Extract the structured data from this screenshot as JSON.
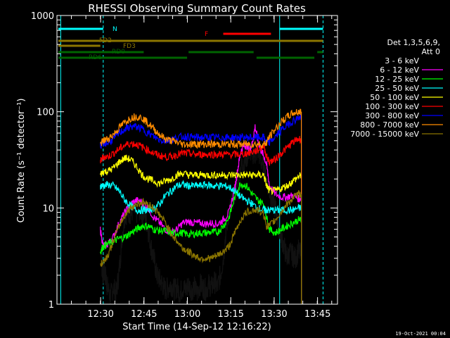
{
  "chart_data": {
    "type": "line",
    "title": "RHESSI Observing Summary Count Rates",
    "xlabel": "Start Time (14-Sep-12 12:16:22)",
    "ylabel": "Count Rate (s⁻¹ detector⁻¹)",
    "yscale": "log",
    "ylim": [
      1,
      1000
    ],
    "xlim_minutes": [
      0,
      96
    ],
    "x_ticks": [
      "12:30",
      "12:45",
      "13:00",
      "13:15",
      "13:30",
      "13:45"
    ],
    "x_tick_minutes": [
      13.6,
      28.6,
      43.6,
      58.6,
      73.6,
      88.6
    ],
    "y_ticks": [
      "1",
      "10",
      "100",
      "1000"
    ],
    "y_tick_values": [
      1,
      10,
      100,
      1000
    ],
    "legend_header": [
      "Det 1,3,5,6,9,",
      "Att 0"
    ],
    "legend_placement": "right",
    "series": [
      {
        "name": "3 - 6 keV",
        "color": "#000000",
        "x": [
          13.5,
          14,
          14.5,
          15,
          15.5,
          16,
          17,
          18,
          19,
          20,
          21,
          22,
          23,
          24,
          25,
          26,
          27,
          28,
          29,
          30,
          31,
          32,
          33,
          34,
          35,
          36,
          37,
          38,
          39,
          40,
          41,
          42,
          43,
          44,
          45,
          46,
          47,
          48,
          49,
          50,
          51,
          52,
          53,
          54,
          55,
          56,
          57,
          58,
          59,
          60,
          61,
          62,
          63,
          64,
          65,
          66,
          67,
          68,
          69,
          70,
          71,
          72,
          73,
          74,
          75,
          76,
          77,
          78,
          79,
          80,
          81,
          82,
          83
        ],
        "y": [
          6,
          2.5,
          2,
          2.2,
          1.8,
          1.5,
          1.2,
          1.5,
          1.3,
          2.2,
          5,
          8.5,
          9,
          8.8,
          9.5,
          8.8,
          9.5,
          9,
          8.5,
          6,
          4,
          3,
          2,
          1.8,
          1.6,
          1.4,
          1.5,
          1.6,
          1.4,
          1.5,
          1.3,
          1.5,
          1.4,
          1.6,
          1.4,
          1.5,
          1.3,
          1.6,
          1.5,
          1.4,
          1.6,
          1.5,
          1.7,
          1.5,
          2,
          3,
          6,
          9,
          12,
          14,
          17,
          26,
          30,
          33,
          40,
          38,
          36,
          40,
          32,
          26,
          20,
          15,
          12,
          10,
          7,
          5,
          4,
          3,
          3.5,
          3.2,
          3,
          3.6,
          3.2
        ]
      },
      {
        "name": "6 - 12 keV",
        "color": "#ff00ff",
        "x": [
          13.5,
          14.5,
          16,
          18,
          20,
          22,
          24,
          26,
          28,
          30,
          32,
          34,
          36,
          38,
          40,
          42,
          44,
          46,
          48,
          50,
          52,
          54,
          56,
          58,
          60,
          61,
          62,
          63,
          64,
          65,
          66,
          67,
          68,
          69,
          70,
          71,
          72,
          74,
          76,
          78,
          80,
          82,
          83
        ],
        "y": [
          6,
          4,
          4.2,
          5,
          7,
          9,
          11,
          12,
          11.5,
          10,
          8,
          7,
          6,
          5.5,
          6,
          7,
          7.2,
          7,
          7,
          6.8,
          7,
          6.8,
          7.5,
          9,
          16,
          25,
          38,
          44,
          45,
          40,
          46,
          70,
          50,
          40,
          35,
          28,
          17,
          14,
          13,
          13,
          13.5,
          12.5,
          12.5
        ]
      },
      {
        "name": "12 - 25 keV",
        "color": "#00ff00",
        "x": [
          13.5,
          14.5,
          16,
          18,
          20,
          22,
          24,
          26,
          28,
          30,
          32,
          34,
          36,
          38,
          40,
          42,
          44,
          46,
          48,
          50,
          52,
          54,
          56,
          58,
          60,
          62,
          64,
          66,
          68,
          70,
          71,
          72,
          74,
          76,
          78,
          80,
          82,
          83
        ],
        "y": [
          3.5,
          4,
          4.2,
          4.5,
          4.8,
          5,
          5.5,
          6,
          6.5,
          6.5,
          6,
          5.8,
          5.8,
          5.5,
          5.5,
          5.5,
          5.3,
          5.4,
          5.5,
          5.5,
          5.6,
          5.6,
          6.5,
          8,
          13,
          18,
          17,
          14,
          12,
          11,
          8,
          6,
          5.5,
          6,
          6.5,
          7,
          7.5,
          7.5
        ]
      },
      {
        "name": "25 - 50 keV",
        "color": "#00ffff",
        "x": [
          13.5,
          14.5,
          16,
          18,
          20,
          22,
          24,
          26,
          28,
          30,
          32,
          34,
          36,
          38,
          40,
          42,
          44,
          46,
          48,
          50,
          52,
          54,
          56,
          58,
          60,
          62,
          64,
          66,
          68,
          70,
          71,
          72,
          74,
          76,
          78,
          80,
          82,
          83
        ],
        "y": [
          17,
          17,
          17.5,
          17,
          15,
          12,
          10.5,
          9.5,
          9.5,
          9.5,
          10,
          11,
          13.5,
          15,
          17,
          17.5,
          17,
          17,
          17,
          17.5,
          17,
          17,
          17,
          16.5,
          15,
          13,
          12,
          11,
          10,
          9.5,
          9.5,
          9.5,
          9.5,
          9.5,
          9.5,
          9.5,
          10,
          10
        ]
      },
      {
        "name": "50 - 100 keV",
        "color": "#ffff00",
        "x": [
          13.5,
          14.5,
          16,
          18,
          20,
          22,
          24,
          26,
          28,
          30,
          32,
          34,
          36,
          38,
          40,
          42,
          44,
          46,
          48,
          50,
          52,
          54,
          56,
          58,
          60,
          62,
          64,
          66,
          68,
          70,
          71,
          72,
          74,
          76,
          78,
          80,
          82,
          83
        ],
        "y": [
          22,
          24,
          24,
          26,
          30,
          33,
          32,
          27,
          22,
          20,
          19,
          18,
          19,
          20,
          22,
          23,
          22,
          22,
          22,
          22,
          22,
          22,
          22,
          22,
          22,
          22,
          22,
          22,
          22,
          22,
          17,
          15,
          15,
          16,
          17,
          19,
          21,
          22
        ]
      },
      {
        "name": "100 - 300 keV",
        "color": "#ff0000",
        "x": [
          13.5,
          14.5,
          16,
          18,
          20,
          22,
          24,
          26,
          28,
          30,
          32,
          34,
          36,
          38,
          40,
          42,
          44,
          46,
          48,
          50,
          52,
          54,
          56,
          58,
          60,
          62,
          64,
          66,
          68,
          70,
          71,
          72,
          74,
          76,
          78,
          80,
          82,
          83
        ],
        "y": [
          30,
          34,
          34,
          37,
          41,
          45,
          47,
          46,
          43,
          40,
          37,
          35,
          34,
          34,
          36,
          37,
          37,
          36,
          36,
          36,
          36,
          36,
          36,
          36,
          36,
          36,
          37,
          38,
          40,
          44,
          34,
          30,
          32,
          37,
          42,
          48,
          52,
          52
        ]
      },
      {
        "name": "300 - 800 keV",
        "color": "#0000ff",
        "x": [
          13.5,
          14.5,
          16,
          18,
          20,
          22,
          24,
          26,
          28,
          30,
          32,
          34,
          36,
          38,
          40,
          42,
          44,
          46,
          48,
          50,
          52,
          54,
          56,
          58,
          60,
          62,
          64,
          66,
          68,
          70,
          71,
          72,
          74,
          76,
          78,
          80,
          82,
          83
        ],
        "y": [
          44,
          47,
          47,
          52,
          60,
          66,
          70,
          70,
          66,
          60,
          55,
          51,
          50,
          51,
          54,
          55,
          55,
          54,
          54,
          54,
          54,
          54,
          54,
          54,
          54,
          54,
          54,
          54,
          54,
          54,
          48,
          48,
          55,
          64,
          72,
          80,
          86,
          88
        ]
      },
      {
        "name": "800 - 7000 keV",
        "color": "#ff8c00",
        "x": [
          13.5,
          14.5,
          16,
          18,
          20,
          22,
          24,
          26,
          28,
          30,
          32,
          34,
          36,
          38,
          40,
          42,
          44,
          46,
          48,
          50,
          52,
          54,
          56,
          58,
          60,
          62,
          64,
          66,
          68,
          70,
          71,
          72,
          74,
          76,
          78,
          80,
          82,
          83
        ],
        "y": [
          46,
          50,
          52,
          58,
          68,
          78,
          86,
          90,
          86,
          76,
          66,
          58,
          52,
          50,
          48,
          46,
          46,
          46,
          46,
          46,
          46,
          46,
          46,
          46,
          46,
          46,
          46,
          46,
          46,
          46,
          48,
          55,
          66,
          78,
          88,
          96,
          100,
          100
        ]
      },
      {
        "name": "7000 - 15000 keV",
        "color": "#8b7500",
        "x": [
          13.5,
          14.5,
          16,
          18,
          20,
          22,
          24,
          26,
          28,
          30,
          32,
          34,
          36,
          38,
          40,
          42,
          44,
          46,
          48,
          50,
          52,
          54,
          56,
          58,
          60,
          62,
          64,
          66,
          68,
          70,
          71,
          72,
          74,
          76,
          78,
          80,
          82,
          83
        ],
        "y": [
          2.5,
          2.8,
          3.2,
          4.5,
          6.5,
          8.5,
          10,
          11,
          11.5,
          11,
          10,
          8.5,
          7,
          5.5,
          4.5,
          3.8,
          3.5,
          3.2,
          3,
          3,
          3,
          3.2,
          3.5,
          4,
          5.5,
          7.5,
          9,
          9.5,
          9.5,
          8.5,
          6.5,
          6.5,
          7.5,
          9,
          11,
          12.5,
          14,
          14
        ]
      }
    ],
    "segments": [
      {
        "label": "N",
        "color": "#00ffff",
        "ranges": [
          [
            -1,
            14.5
          ],
          [
            75.5,
            90.5
          ]
        ]
      },
      {
        "label": "F",
        "color": "#ff0000",
        "ranges": [
          [
            56,
            72.5
          ]
        ]
      },
      {
        "label": "FD2",
        "color": "#8b7500",
        "ranges": [
          [
            -1,
            13.5
          ],
          [
            13.6,
            90.5
          ]
        ]
      },
      {
        "label": "FD3",
        "color": "#8b7500",
        "ranges": [
          [
            -1,
            13.5
          ]
        ]
      },
      {
        "label": "RD0",
        "color": "#006400",
        "ranges": [
          [
            -1,
            28.5
          ],
          [
            44,
            66.5
          ],
          [
            88.5,
            90.5
          ]
        ]
      },
      {
        "label": "RD6",
        "color": "#006400",
        "ranges": [
          [
            -1,
            43.5
          ],
          [
            67.5,
            87.5
          ]
        ]
      }
    ],
    "vlines_cyan_dashed_minutes": [
      14.5,
      90.5
    ],
    "vlines_cyan_solid_minutes": [
      -0.2,
      75.5
    ],
    "grid": false
  },
  "footer": {
    "timestamp": "19-Oct-2021 00:04"
  }
}
